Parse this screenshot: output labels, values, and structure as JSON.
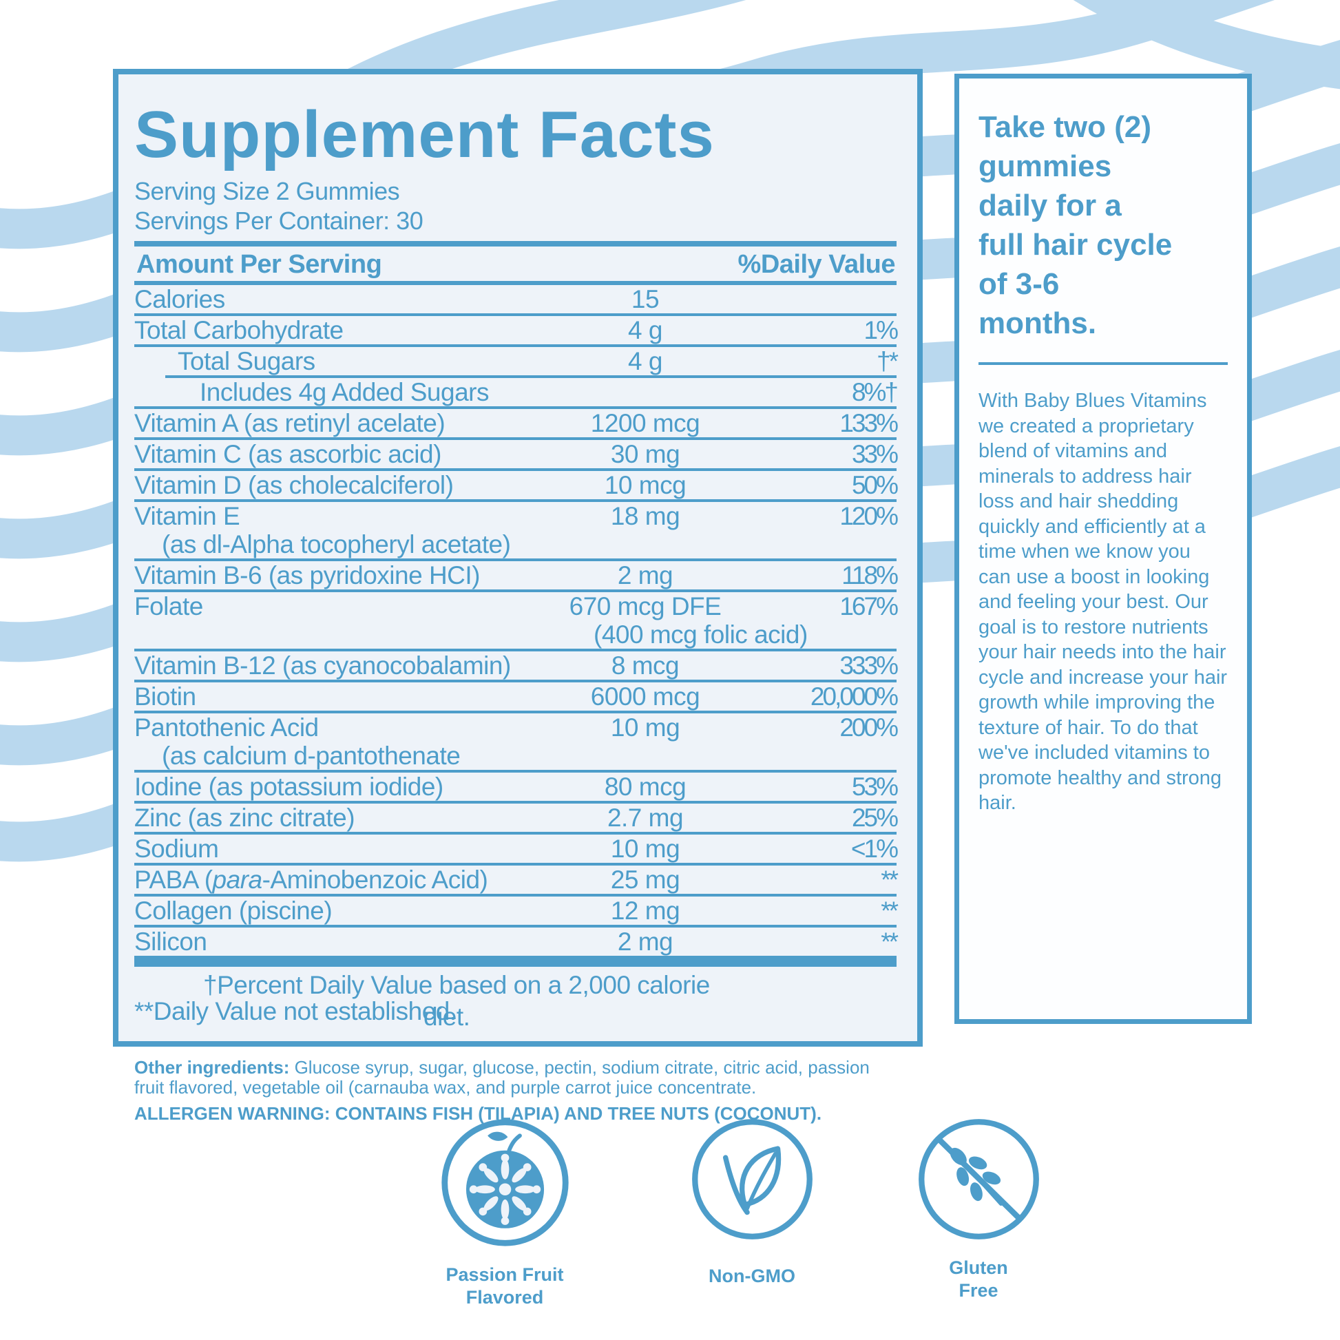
{
  "colors": {
    "accent": "#4d9dca",
    "wave": "#b9d8ee",
    "panel_bg": "#eef3f9"
  },
  "supplement_panel": {
    "title": "Supplement Facts",
    "serving_size": "Serving Size 2 Gummies",
    "servings_per_container": "Servings Per Container: 30",
    "col_amount": "Amount Per Serving",
    "col_dv": "%Daily Value",
    "rows": [
      {
        "label": "Calories",
        "amount": "15",
        "dv": ""
      },
      {
        "label": "Total Carbohydrate",
        "amount": "4 g",
        "dv": "1%"
      },
      {
        "label": "Total Sugars",
        "amount": "4 g",
        "dv": "†*",
        "mod": "ind1"
      },
      {
        "label": "Includes 4g Added Sugars",
        "amount": "",
        "dv": "8%†",
        "mod": "ind2"
      },
      {
        "label": "Vitamin A (as retinyl acelate)",
        "amount": "1200 mcg",
        "dv": "133%"
      },
      {
        "label": "Vitamin C (as ascorbic acid)",
        "amount": "30 mg",
        "dv": "33%"
      },
      {
        "label": "Vitamin D (as cholecalciferol)",
        "amount": "10 mcg",
        "dv": "50%"
      },
      {
        "label": "Vitamin E",
        "label_sub": "(as dl-Alpha tocopheryl acetate)",
        "amount": "18 mg",
        "dv": "120%"
      },
      {
        "label": "Vitamin B-6 (as pyridoxine HCI)",
        "amount": "2 mg",
        "dv": "118%"
      },
      {
        "label": "Folate",
        "amount": "670 mcg DFE",
        "amount_sub": "(400 mcg folic acid)",
        "dv": "167%"
      },
      {
        "label": "Vitamin B-12 (as cyanocobalamin)",
        "amount": "8 mcg",
        "dv": "333%"
      },
      {
        "label": "Biotin",
        "amount": "6000 mcg",
        "dv": "20,000%"
      },
      {
        "label": "Pantothenic Acid",
        "label_sub": "(as calcium d-pantothenate",
        "amount": "10 mg",
        "dv": "200%"
      },
      {
        "label": "Iodine (as potassium iodide)",
        "amount": "80 mcg",
        "dv": "53%"
      },
      {
        "label": "Zinc (as zinc citrate)",
        "amount": "2.7 mg",
        "dv": "25%"
      },
      {
        "label": "Sodium",
        "amount": "10 mg",
        "dv": "<1%"
      },
      {
        "label_pre": "PABA (",
        "label_it": "para",
        "label_post": "-Aminobenzoic Acid)",
        "amount": "25 mg",
        "dv": "**"
      },
      {
        "label": "Collagen (piscine)",
        "amount": "12 mg",
        "dv": "**"
      },
      {
        "label": "Silicon",
        "amount": "2 mg",
        "dv": "**"
      }
    ],
    "footnote_line1": "†Percent Daily Value based on a 2,000 calorie",
    "footnote_overlap": "diet.",
    "footnote_line2": "**Daily Value not established."
  },
  "directions": {
    "heading_lines": [
      "Take two (2)",
      "gummies",
      "daily for a",
      "full hair cycle",
      "of 3-6",
      "months."
    ],
    "body": "With Baby Blues Vitamins we created a proprietary blend of vitamins and minerals to address hair loss and hair shedding quickly and efficiently at a time when we know you can use a boost in looking and feeling your best. Our goal is to restore nutrients your hair needs into the hair cycle and increase your hair growth while improving the texture of hair. To do that we've included vitamins to promote healthy and strong hair."
  },
  "ingredients": {
    "other_label": "Other ingredients:",
    "other_text": " Glucose syrup, sugar, glucose, pectin, sodium citrate, citric acid, passion fruit flavored, vegetable oil (carnauba wax, and purple carrot juice concentrate.",
    "allergen": "ALLERGEN WARNING: CONTAINS FISH (TILAPIA) AND TREE NUTS (COCONUT)."
  },
  "badges": [
    {
      "icon": "passion-fruit-icon",
      "lines": [
        "Passion Fruit",
        "Flavored"
      ]
    },
    {
      "icon": "leaf-icon",
      "lines": [
        "Non-GMO"
      ]
    },
    {
      "icon": "wheat-crossed-icon",
      "lines": [
        "Gluten",
        "Free"
      ]
    }
  ]
}
